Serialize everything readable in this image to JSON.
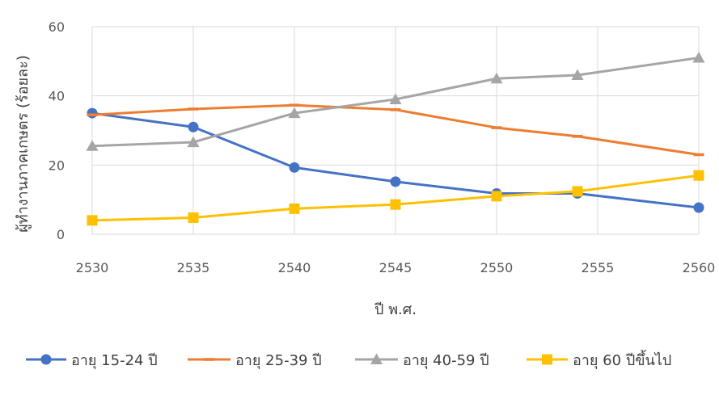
{
  "chart_data": {
    "type": "line",
    "title": "",
    "xlabel": "ปี พ.ศ.",
    "ylabel": "ผู้ทำงานภาคเกษตร (ร้อยละ)",
    "x": [
      2530,
      2535,
      2540,
      2545,
      2550,
      2554,
      2560
    ],
    "x_ticks": [
      2530,
      2535,
      2540,
      2545,
      2550,
      2555,
      2560
    ],
    "xlim": [
      2530,
      2560
    ],
    "y_ticks": [
      0,
      20,
      40,
      60
    ],
    "ylim": [
      0,
      60
    ],
    "grid": "vertical-and-horizontal",
    "legend_position": "bottom",
    "series": [
      {
        "name": "อายุ 15-24 ปี",
        "color": "#4472C4",
        "marker": "circle",
        "values": [
          35,
          31,
          19.3,
          15.2,
          11.8,
          11.8,
          7.7
        ]
      },
      {
        "name": "อายุ 25-39 ปี",
        "color": "#ED7D31",
        "marker": "dash",
        "values": [
          34.5,
          36.2,
          37.3,
          36,
          30.8,
          28.3,
          23
        ]
      },
      {
        "name": "อายุ 40-59 ปี",
        "color": "#A5A5A5",
        "marker": "triangle",
        "values": [
          25.5,
          26.6,
          35,
          39,
          45,
          46,
          51
        ]
      },
      {
        "name": "อายุ 60 ปีขึ้นไป",
        "color": "#FFC000",
        "marker": "square",
        "values": [
          4,
          4.8,
          7.4,
          8.6,
          11,
          12.4,
          17
        ]
      }
    ]
  }
}
